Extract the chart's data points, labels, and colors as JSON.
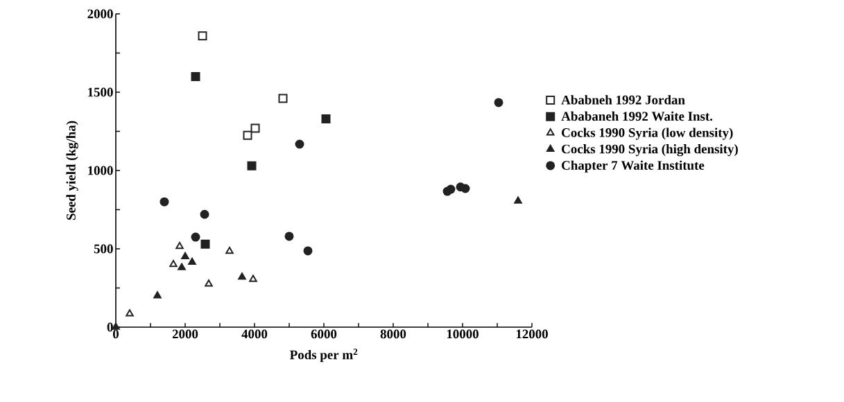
{
  "chart_data": {
    "type": "scatter",
    "xlabel": "Pods per m$^{2}$",
    "ylabel": "Seed yield (kg/ha)",
    "xlim": [
      0,
      12000
    ],
    "ylim": [
      0,
      2000
    ],
    "xticks": [
      0,
      {
        "value": 1000,
        "label": null
      },
      2000,
      {
        "value": 3000,
        "label": null
      },
      4000,
      {
        "value": 5000,
        "label": null
      },
      6000,
      {
        "value": 7000,
        "label": null
      },
      8000,
      {
        "value": 9000,
        "label": null
      },
      10000,
      {
        "value": 11000,
        "label": null
      },
      12000
    ],
    "yticks": [
      0,
      {
        "value": 250,
        "label": null
      },
      500,
      {
        "value": 750,
        "label": null
      },
      1000,
      {
        "value": 1250,
        "label": null
      },
      1500,
      {
        "value": 1750,
        "label": null
      },
      2000
    ],
    "grid": false,
    "legend": "right",
    "series": [
      {
        "name": "Ababneh 1992 Jordan",
        "color": "#222222",
        "marker": "square-open",
        "x": [
          2500,
          4820,
          4020,
          3800
        ],
        "values": [
          1860,
          1460,
          1270,
          1225
        ]
      },
      {
        "name": "Ababaneh 1992 Waite Inst.",
        "color": "#222222",
        "marker": "square",
        "x": [
          2300,
          6060,
          3920,
          2580
        ],
        "values": [
          1600,
          1330,
          1030,
          530
        ]
      },
      {
        "name": "Cocks 1990 Syria (low density)",
        "color": "#222222",
        "marker": "triangle-open",
        "x": [
          1840,
          1660,
          3280,
          2680,
          3960,
          400
        ],
        "values": [
          515,
          400,
          485,
          275,
          305,
          85
        ]
      },
      {
        "name": "Cocks 1990 Syria (high density)",
        "color": "#222222",
        "marker": "triangle",
        "x": [
          0,
          1200,
          1900,
          2000,
          2200,
          3640,
          11600
        ],
        "values": [
          0,
          200,
          380,
          450,
          415,
          320,
          805
        ]
      },
      {
        "name": "Chapter 7 Waite Institute",
        "color": "#222222",
        "marker": "circle",
        "x": [
          1400,
          2560,
          2300,
          5000,
          5540,
          5300,
          11040,
          9560,
          9660,
          9940,
          10080
        ],
        "values": [
          800,
          720,
          575,
          580,
          487,
          1168,
          1434,
          867,
          880,
          895,
          885
        ]
      }
    ]
  }
}
